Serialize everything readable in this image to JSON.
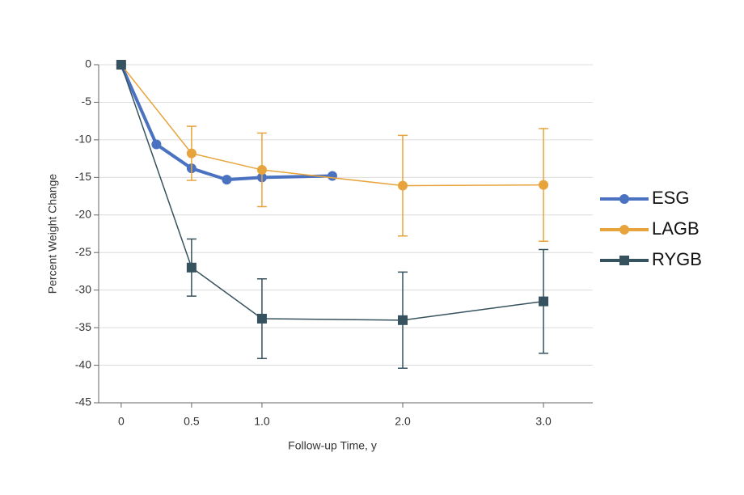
{
  "chart_data": {
    "type": "line",
    "ylabel": "Percent Weight Change",
    "xlabel": "Follow-up Time, y",
    "xlim": [
      -0.16,
      3.35
    ],
    "ylim": [
      -45,
      0
    ],
    "xticks": [
      0,
      0.5,
      {
        "value": 1,
        "label": "1.0"
      },
      {
        "value": 2,
        "label": "2.0"
      },
      {
        "value": 3,
        "label": "3.0"
      }
    ],
    "yticks": [
      0,
      -5,
      -10,
      -15,
      -20,
      -25,
      -30,
      -35,
      -40,
      -45
    ],
    "grid": true,
    "legend": "right",
    "series": [
      {
        "name": "ESG",
        "color": "#4a72c0",
        "marker": "circle",
        "line_width": 4,
        "x": [
          0,
          0.25,
          0.5,
          0.75,
          1.0,
          1.5
        ],
        "values": [
          0,
          -10.6,
          -13.8,
          -15.3,
          -15.0,
          -14.8
        ]
      },
      {
        "name": "LAGB",
        "color": "#e8a43c",
        "marker": "circle",
        "line_width": 1.5,
        "x": [
          0,
          0.5,
          1.0,
          2.0,
          3.0
        ],
        "values": [
          0,
          -11.8,
          -14.0,
          -16.1,
          -16.0
        ],
        "errors": [
          null,
          3.6,
          4.9,
          6.7,
          7.5
        ]
      },
      {
        "name": "RYGB",
        "color": "#36525e",
        "marker": "square",
        "line_width": 1.5,
        "x": [
          0,
          0.5,
          1.0,
          2.0,
          3.0
        ],
        "values": [
          0,
          -27.0,
          -33.8,
          -34.0,
          -31.5
        ],
        "errors": [
          null,
          3.8,
          5.3,
          6.4,
          6.9
        ]
      }
    ]
  }
}
